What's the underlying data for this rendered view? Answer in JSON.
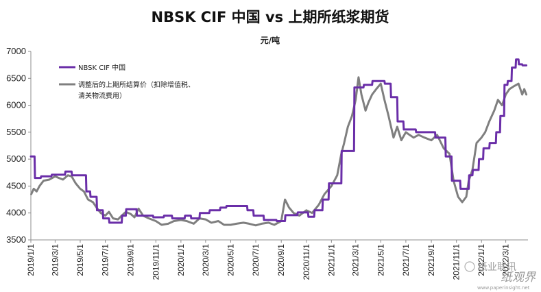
{
  "chart_data": {
    "type": "line",
    "title": "NBSK CIF 中国 vs 上期所纸浆期货",
    "unit": "元/吨",
    "ylim": [
      3500,
      7000
    ],
    "y_ticks": [
      "3500",
      "4000",
      "4500",
      "5000",
      "5500",
      "6000",
      "6500",
      "7000"
    ],
    "x_ticks": [
      "2019/1/1",
      "2019/3/1",
      "2019/5/1",
      "2019/7/1",
      "2019/9/1",
      "2019/11/1",
      "2020/1/1",
      "2020/3/1",
      "2020/5/1",
      "2020/7/1",
      "2020/9/1",
      "2020/11/1",
      "2021/1/1",
      "2021/3/1",
      "2021/5/1",
      "2021/7/1",
      "2021/9/1",
      "2021/11/1",
      "2022/1/1",
      "2022/3/1"
    ],
    "legend_position": "top-left",
    "grid": false,
    "series": [
      {
        "name": "NBSK CIF 中国",
        "color": "#6a2ea8",
        "points": [
          [
            "2019/1/1",
            5050
          ],
          [
            "2019/1/10",
            5050
          ],
          [
            "2019/1/11",
            4650
          ],
          [
            "2019/1/25",
            4650
          ],
          [
            "2019/1/26",
            4680
          ],
          [
            "2019/2/20",
            4680
          ],
          [
            "2019/2/21",
            4710
          ],
          [
            "2019/3/25",
            4710
          ],
          [
            "2019/3/26",
            4770
          ],
          [
            "2019/4/10",
            4770
          ],
          [
            "2019/4/11",
            4700
          ],
          [
            "2019/5/15",
            4700
          ],
          [
            "2019/5/16",
            4400
          ],
          [
            "2019/5/25",
            4400
          ],
          [
            "2019/5/26",
            4300
          ],
          [
            "2019/6/10",
            4300
          ],
          [
            "2019/6/11",
            4050
          ],
          [
            "2019/6/25",
            4050
          ],
          [
            "2019/6/26",
            3900
          ],
          [
            "2019/7/10",
            3900
          ],
          [
            "2019/7/11",
            3820
          ],
          [
            "2019/8/10",
            3820
          ],
          [
            "2019/8/11",
            3950
          ],
          [
            "2019/8/20",
            3950
          ],
          [
            "2019/8/21",
            4070
          ],
          [
            "2019/9/15",
            4070
          ],
          [
            "2019/9/16",
            3950
          ],
          [
            "2019/10/25",
            3950
          ],
          [
            "2019/10/26",
            3920
          ],
          [
            "2019/11/20",
            3920
          ],
          [
            "2019/11/21",
            3950
          ],
          [
            "2019/12/10",
            3950
          ],
          [
            "2019/12/11",
            3900
          ],
          [
            "2020/1/10",
            3900
          ],
          [
            "2020/1/11",
            3950
          ],
          [
            "2020/1/25",
            3950
          ],
          [
            "2020/1/26",
            3900
          ],
          [
            "2020/2/15",
            3900
          ],
          [
            "2020/2/16",
            4000
          ],
          [
            "2020/3/10",
            4000
          ],
          [
            "2020/3/11",
            4050
          ],
          [
            "2020/4/5",
            4050
          ],
          [
            "2020/4/6",
            4100
          ],
          [
            "2020/4/20",
            4100
          ],
          [
            "2020/4/21",
            4130
          ],
          [
            "2020/6/10",
            4130
          ],
          [
            "2020/6/11",
            4050
          ],
          [
            "2020/6/25",
            4050
          ],
          [
            "2020/6/26",
            3950
          ],
          [
            "2020/7/20",
            3950
          ],
          [
            "2020/7/21",
            3870
          ],
          [
            "2020/8/20",
            3870
          ],
          [
            "2020/8/21",
            3850
          ],
          [
            "2020/9/10",
            3850
          ],
          [
            "2020/9/11",
            3960
          ],
          [
            "2020/10/10",
            3960
          ],
          [
            "2020/10/11",
            4010
          ],
          [
            "2020/11/5",
            4010
          ],
          [
            "2020/11/6",
            3930
          ],
          [
            "2020/11/20",
            3930
          ],
          [
            "2020/11/21",
            4050
          ],
          [
            "2020/12/10",
            4050
          ],
          [
            "2020/12/11",
            4250
          ],
          [
            "2020/12/25",
            4250
          ],
          [
            "2020/12/26",
            4550
          ],
          [
            "2021/1/25",
            4550
          ],
          [
            "2021/1/26",
            5150
          ],
          [
            "2021/2/25",
            5150
          ],
          [
            "2021/2/26",
            6330
          ],
          [
            "2021/3/20",
            6330
          ],
          [
            "2021/3/21",
            6380
          ],
          [
            "2021/4/10",
            6380
          ],
          [
            "2021/4/11",
            6450
          ],
          [
            "2021/5/10",
            6450
          ],
          [
            "2021/5/11",
            6400
          ],
          [
            "2021/5/25",
            6400
          ],
          [
            "2021/5/26",
            6150
          ],
          [
            "2021/6/10",
            6150
          ],
          [
            "2021/6/11",
            5700
          ],
          [
            "2021/6/25",
            5700
          ],
          [
            "2021/6/26",
            5550
          ],
          [
            "2021/7/25",
            5550
          ],
          [
            "2021/7/26",
            5500
          ],
          [
            "2021/9/10",
            5500
          ],
          [
            "2021/9/11",
            5400
          ],
          [
            "2021/10/5",
            5400
          ],
          [
            "2021/10/6",
            5050
          ],
          [
            "2021/10/20",
            5050
          ],
          [
            "2021/10/21",
            4600
          ],
          [
            "2021/11/10",
            4600
          ],
          [
            "2021/11/11",
            4450
          ],
          [
            "2021/12/1",
            4450
          ],
          [
            "2021/12/2",
            4700
          ],
          [
            "2021/12/10",
            4700
          ],
          [
            "2021/12/11",
            4800
          ],
          [
            "2021/12/25",
            4800
          ],
          [
            "2021/12/26",
            5000
          ],
          [
            "2022/1/5",
            5000
          ],
          [
            "2022/1/6",
            5200
          ],
          [
            "2022/1/20",
            5200
          ],
          [
            "2022/1/21",
            5300
          ],
          [
            "2022/2/5",
            5300
          ],
          [
            "2022/2/6",
            5500
          ],
          [
            "2022/2/15",
            5500
          ],
          [
            "2022/2/16",
            5800
          ],
          [
            "2022/2/25",
            5800
          ],
          [
            "2022/2/26",
            6380
          ],
          [
            "2022/3/5",
            6380
          ],
          [
            "2022/3/6",
            6450
          ],
          [
            "2022/3/15",
            6450
          ],
          [
            "2022/3/16",
            6700
          ],
          [
            "2022/3/25",
            6700
          ],
          [
            "2022/3/26",
            6850
          ],
          [
            "2022/4/1",
            6850
          ],
          [
            "2022/4/2",
            6760
          ],
          [
            "2022/4/10",
            6760
          ],
          [
            "2022/4/11",
            6740
          ],
          [
            "2022/4/20",
            6740
          ]
        ]
      },
      {
        "name": "调整后的上期所结算价（扣除增值税、清关物流费用）",
        "legend_lines": [
          "调整后的上期所结算价（扣除增值税、",
          "清关物流费用）"
        ],
        "color": "#7f7f7f",
        "points": [
          [
            "2019/1/2",
            4350
          ],
          [
            "2019/1/8",
            4450
          ],
          [
            "2019/1/15",
            4400
          ],
          [
            "2019/1/22",
            4500
          ],
          [
            "2019/2/1",
            4600
          ],
          [
            "2019/2/15",
            4620
          ],
          [
            "2019/3/1",
            4680
          ],
          [
            "2019/3/10",
            4650
          ],
          [
            "2019/3/20",
            4620
          ],
          [
            "2019/4/1",
            4700
          ],
          [
            "2019/4/10",
            4680
          ],
          [
            "2019/4/20",
            4550
          ],
          [
            "2019/5/1",
            4450
          ],
          [
            "2019/5/10",
            4400
          ],
          [
            "2019/5/20",
            4250
          ],
          [
            "2019/6/1",
            4200
          ],
          [
            "2019/6/10",
            4100
          ],
          [
            "2019/6/20",
            4000
          ],
          [
            "2019/7/1",
            3950
          ],
          [
            "2019/7/10",
            4020
          ],
          [
            "2019/7/20",
            3900
          ],
          [
            "2019/8/1",
            3880
          ],
          [
            "2019/8/10",
            3950
          ],
          [
            "2019/8/20",
            4020
          ],
          [
            "2019/9/1",
            3980
          ],
          [
            "2019/9/10",
            3920
          ],
          [
            "2019/9/20",
            4080
          ],
          [
            "2019/10/1",
            3950
          ],
          [
            "2019/10/15",
            3900
          ],
          [
            "2019/11/1",
            3850
          ],
          [
            "2019/11/15",
            3780
          ],
          [
            "2019/12/1",
            3800
          ],
          [
            "2019/12/15",
            3850
          ],
          [
            "2020/1/1",
            3870
          ],
          [
            "2020/1/15",
            3850
          ],
          [
            "2020/2/1",
            3800
          ],
          [
            "2020/2/15",
            3900
          ],
          [
            "2020/3/1",
            3880
          ],
          [
            "2020/3/15",
            3820
          ],
          [
            "2020/4/1",
            3850
          ],
          [
            "2020/4/15",
            3780
          ],
          [
            "2020/5/1",
            3780
          ],
          [
            "2020/5/15",
            3800
          ],
          [
            "2020/6/1",
            3820
          ],
          [
            "2020/6/15",
            3800
          ],
          [
            "2020/7/1",
            3770
          ],
          [
            "2020/7/15",
            3800
          ],
          [
            "2020/8/1",
            3820
          ],
          [
            "2020/8/15",
            3780
          ],
          [
            "2020/9/1",
            3850
          ],
          [
            "2020/9/10",
            4250
          ],
          [
            "2020/9/20",
            4100
          ],
          [
            "2020/10/1",
            4000
          ],
          [
            "2020/10/15",
            3950
          ],
          [
            "2020/11/1",
            4050
          ],
          [
            "2020/11/15",
            4000
          ],
          [
            "2020/12/1",
            4150
          ],
          [
            "2020/12/15",
            4350
          ],
          [
            "2021/1/1",
            4500
          ],
          [
            "2021/1/15",
            4700
          ],
          [
            "2021/1/25",
            5100
          ],
          [
            "2021/2/1",
            5300
          ],
          [
            "2021/2/10",
            5600
          ],
          [
            "2021/2/20",
            5800
          ],
          [
            "2021/3/1",
            6100
          ],
          [
            "2021/3/8",
            6520
          ],
          [
            "2021/3/15",
            6200
          ],
          [
            "2021/3/25",
            5900
          ],
          [
            "2021/4/1",
            6050
          ],
          [
            "2021/4/10",
            6200
          ],
          [
            "2021/4/20",
            6300
          ],
          [
            "2021/5/1",
            6400
          ],
          [
            "2021/5/10",
            6100
          ],
          [
            "2021/5/20",
            5800
          ],
          [
            "2021/6/1",
            5400
          ],
          [
            "2021/6/10",
            5600
          ],
          [
            "2021/6/20",
            5350
          ],
          [
            "2021/7/1",
            5500
          ],
          [
            "2021/7/10",
            5450
          ],
          [
            "2021/7/20",
            5400
          ],
          [
            "2021/8/1",
            5450
          ],
          [
            "2021/8/15",
            5400
          ],
          [
            "2021/9/1",
            5350
          ],
          [
            "2021/9/15",
            5450
          ],
          [
            "2021/10/1",
            5200
          ],
          [
            "2021/10/15",
            5100
          ],
          [
            "2021/10/25",
            4600
          ],
          [
            "2021/11/5",
            4300
          ],
          [
            "2021/11/15",
            4200
          ],
          [
            "2021/11/25",
            4300
          ],
          [
            "2021/12/1",
            4600
          ],
          [
            "2021/12/10",
            4800
          ],
          [
            "2021/12/20",
            5300
          ],
          [
            "2022/1/1",
            5400
          ],
          [
            "2022/1/10",
            5500
          ],
          [
            "2022/1/20",
            5700
          ],
          [
            "2022/2/1",
            5900
          ],
          [
            "2022/2/10",
            6100
          ],
          [
            "2022/2/20",
            6000
          ],
          [
            "2022/3/1",
            6200
          ],
          [
            "2022/3/10",
            6300
          ],
          [
            "2022/3/20",
            6350
          ],
          [
            "2022/4/1",
            6400
          ],
          [
            "2022/4/10",
            6200
          ],
          [
            "2022/4/15",
            6300
          ],
          [
            "2022/4/20",
            6200
          ]
        ]
      }
    ]
  },
  "watermark": {
    "source": "纸业联讯",
    "brand": "纸观界",
    "url": "www.paperinsight.net"
  }
}
